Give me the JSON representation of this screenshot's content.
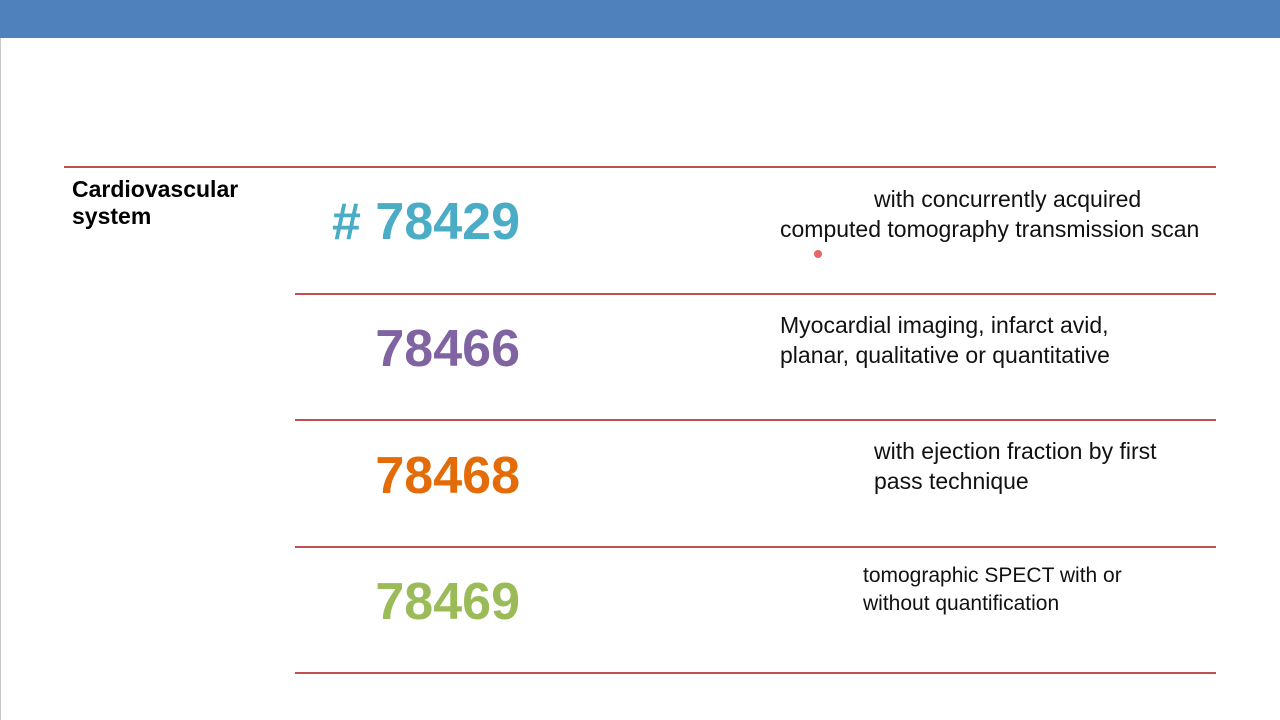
{
  "category": "Cardiovascular system",
  "rows": [
    {
      "code": "# 78429",
      "color": "#4bacc6",
      "description": "with concurrently acquired computed tomography transmission scan"
    },
    {
      "code": "78466",
      "color": "#8064a2",
      "description": "Myocardial imaging, infarct avid, planar, qualitative or quantitative"
    },
    {
      "code": "78468",
      "color": "#e36c09",
      "description": "with ejection fraction by first pass technique"
    },
    {
      "code": "78469",
      "color": "#9bbb59",
      "description": "tomographic SPECT with or without quantification"
    }
  ],
  "colors": {
    "header_bar": "#4f81bd",
    "rules": "#c0504d"
  }
}
